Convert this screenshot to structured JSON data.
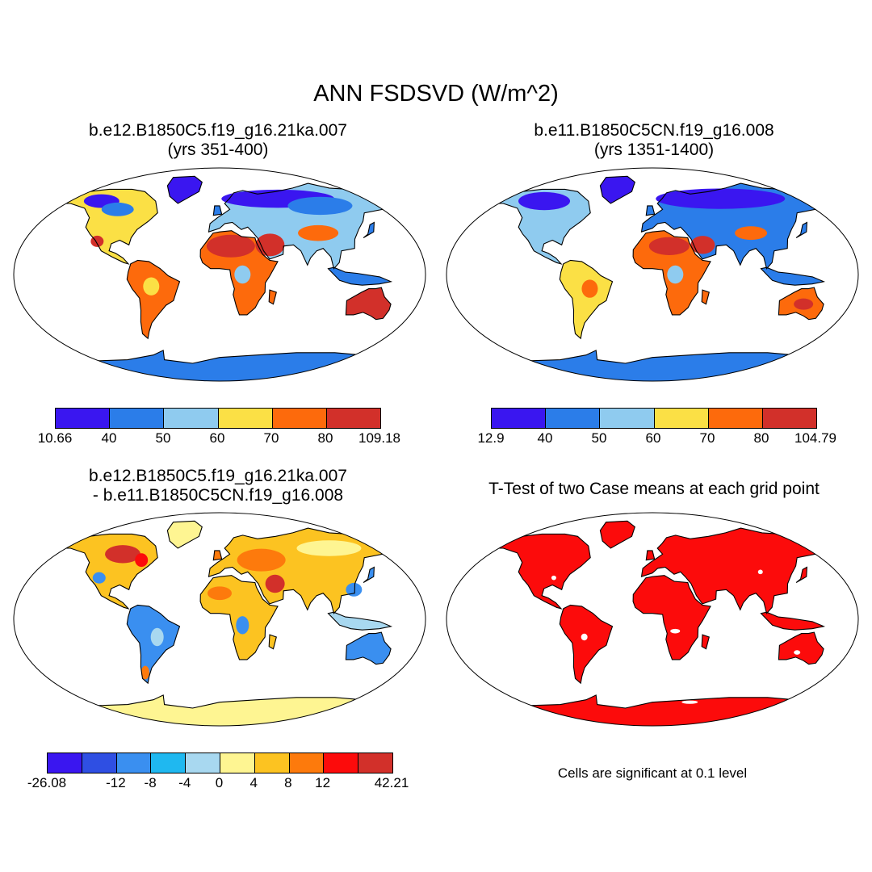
{
  "title": "ANN FSDSVD (W/m^2)",
  "panels": [
    {
      "title_line1": "b.e12.B1850C5.f19_g16.21ka.007",
      "title_line2": "(yrs 351-400)",
      "colorbar": {
        "colors": [
          "#3a16f0",
          "#2b7de9",
          "#8fcbef",
          "#fbe045",
          "#fd6a0c",
          "#d2302a"
        ],
        "labels": [
          "10.66",
          "40",
          "50",
          "60",
          "70",
          "80",
          "109.18"
        ]
      }
    },
    {
      "title_line1": "b.e11.B1850C5CN.f19_g16.008",
      "title_line2": "(yrs 1351-1400)",
      "colorbar": {
        "colors": [
          "#3a16f0",
          "#2b7de9",
          "#8fcbef",
          "#fbe045",
          "#fd6a0c",
          "#d2302a"
        ],
        "labels": [
          "12.9",
          "40",
          "50",
          "60",
          "70",
          "80",
          "104.79"
        ]
      }
    },
    {
      "title_line1": "b.e12.B1850C5.f19_g16.21ka.007",
      "title_line2": "- b.e11.B1850C5CN.f19_g16.008",
      "colorbar": {
        "colors": [
          "#3a16f0",
          "#2f4fe3",
          "#3a8ff0",
          "#1fb8f0",
          "#a8d8f0",
          "#fef592",
          "#fcc321",
          "#fd7a0c",
          "#fc0b0b",
          "#d2302a"
        ],
        "labels": [
          "-26.08",
          "",
          "-12",
          "-8",
          "-4",
          "0",
          "4",
          "8",
          "12",
          "",
          "42.21"
        ]
      }
    },
    {
      "title_line1": "T-Test of two Case means at each grid point",
      "title_line2": "",
      "note": "Cells are significant at 0.1 level",
      "colors": [
        "#fc0b0b"
      ]
    }
  ]
}
